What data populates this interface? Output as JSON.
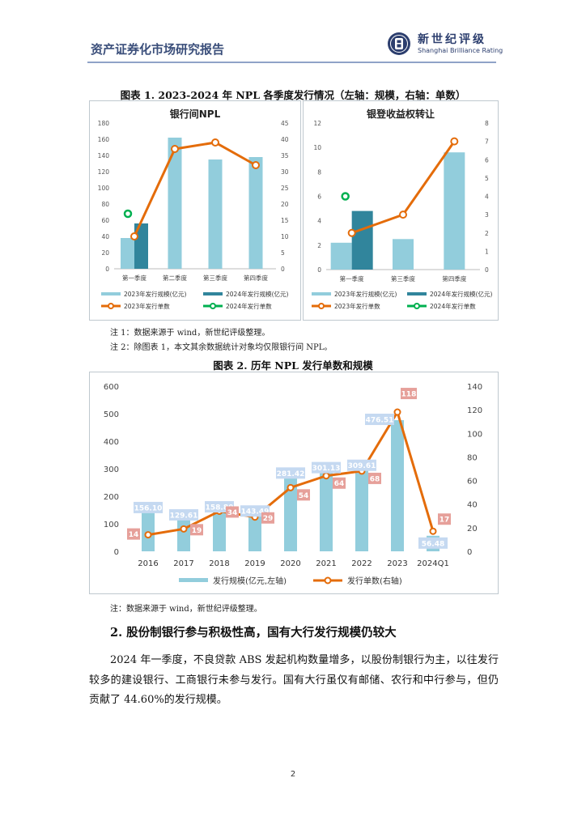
{
  "header": {
    "title": "资产证券化市场研究报告",
    "logo_cn": "新世纪评级",
    "logo_en": "Shanghai Brilliance Rating"
  },
  "colors": {
    "bar_2023": "#92cddc",
    "bar_2024": "#31859c",
    "line_2023": "#e46c0a",
    "point_2024": "#00b050",
    "label_bar": "#c5d9f1",
    "label_line": "#e6a09a"
  },
  "figure1": {
    "title": "图表 1.  2023-2024 年 NPL 各季度发行情况（左轴：规模，右轴：单数）"
  },
  "figure2": {
    "title": "图表 2.  历年 NPL 发行单数和规模"
  },
  "notes": {
    "fig1_note1": "注 1：数据来源于 wind，新世纪评级整理。",
    "fig1_note2": "注 2：除图表 1，本文其余数据统计对象均仅限银行间 NPL。",
    "fig2_note": "注：数据来源于 wind，新世纪评级整理。"
  },
  "chart_data": [
    {
      "type": "bar",
      "title": "银行间NPL",
      "categories": [
        "第一季度",
        "第二季度",
        "第三季度",
        "第四季度"
      ],
      "left_axis": {
        "ylim": [
          0,
          180
        ],
        "ticks": [
          "0",
          "20",
          "40",
          "60",
          "80",
          "100",
          "120",
          "140",
          "160",
          "180"
        ]
      },
      "right_axis": {
        "ylim": [
          0,
          45
        ],
        "ticks": [
          "0",
          "5",
          "10",
          "15",
          "20",
          "25",
          "30",
          "35",
          "40",
          "45"
        ]
      },
      "series": [
        {
          "name": "2023年发行规模(亿元)",
          "kind": "bar",
          "axis": "left",
          "values": [
            38,
            162,
            135,
            138
          ]
        },
        {
          "name": "2024年发行规模(亿元)",
          "kind": "bar",
          "axis": "left",
          "values": [
            56,
            null,
            null,
            null
          ]
        },
        {
          "name": "2023年发行单数",
          "kind": "line",
          "axis": "right",
          "values": [
            10,
            37,
            39,
            32
          ]
        },
        {
          "name": "2024年发行单数",
          "kind": "point",
          "axis": "right",
          "values": [
            17,
            null,
            null,
            null
          ]
        }
      ],
      "legend": [
        "2023年发行规模(亿元)",
        "2024年发行规模(亿元)",
        "2023年发行单数",
        "2024年发行单数"
      ]
    },
    {
      "type": "bar",
      "title": "银登收益权转让",
      "categories": [
        "第一季度",
        "第三季度",
        "第四季度"
      ],
      "left_axis": {
        "ylim": [
          0,
          12
        ],
        "ticks": [
          "0",
          "2",
          "4",
          "6",
          "8",
          "10",
          "12"
        ]
      },
      "right_axis": {
        "ylim": [
          0,
          8
        ],
        "ticks": [
          "0",
          "1",
          "2",
          "3",
          "4",
          "5",
          "6",
          "7",
          "8"
        ]
      },
      "series": [
        {
          "name": "2023年发行规模(亿元)",
          "kind": "bar",
          "axis": "left",
          "values": [
            2.2,
            2.5,
            9.6
          ]
        },
        {
          "name": "2024年发行规模(亿元)",
          "kind": "bar",
          "axis": "left",
          "values": [
            4.8,
            null,
            null
          ]
        },
        {
          "name": "2023年发行单数",
          "kind": "line",
          "axis": "right",
          "values": [
            2,
            3,
            7
          ]
        },
        {
          "name": "2024年发行单数",
          "kind": "point",
          "axis": "right",
          "values": [
            4,
            null,
            null
          ]
        }
      ],
      "legend": [
        "2023年发行规模(亿元)",
        "2024年发行规模(亿元)",
        "2023年发行单数",
        "2024年发行单数"
      ]
    },
    {
      "type": "bar",
      "title": "历年 NPL 发行单数和规模",
      "categories": [
        "2016",
        "2017",
        "2018",
        "2019",
        "2020",
        "2021",
        "2022",
        "2023",
        "2024Q1"
      ],
      "left_axis": {
        "ylim": [
          0,
          600
        ],
        "ticks": [
          "0",
          "100",
          "200",
          "300",
          "400",
          "500",
          "600"
        ]
      },
      "right_axis": {
        "ylim": [
          0,
          140
        ],
        "ticks": [
          "0",
          "20",
          "40",
          "60",
          "80",
          "100",
          "120",
          "140"
        ]
      },
      "series": [
        {
          "name": "发行规模(亿元,左轴)",
          "kind": "bar",
          "axis": "left",
          "values": [
            156.1,
            129.61,
            158.8,
            143.49,
            281.42,
            301.13,
            309.61,
            476.51,
            56.48
          ],
          "labels": [
            "156.10",
            "129.61",
            "158.80",
            "143.49",
            "281.42",
            "301.13",
            "309.61",
            "476.51",
            "56.48"
          ]
        },
        {
          "name": "发行单数(右轴)",
          "kind": "line",
          "axis": "right",
          "values": [
            14,
            19,
            34,
            29,
            54,
            64,
            68,
            118,
            17
          ],
          "labels": [
            "14",
            "19",
            "34",
            "29",
            "54",
            "64",
            "68",
            "118",
            "17"
          ]
        }
      ],
      "legend": [
        "发行规模(亿元,左轴)",
        "发行单数(右轴)"
      ]
    }
  ],
  "section": {
    "heading": "2. 股份制银行参与积极性高，国有大行发行规模仍较大",
    "paragraph": "2024 年一季度，不良贷款 ABS 发起机构数量增多，以股份制银行为主，以往发行较多的建设银行、工商银行未参与发行。国有大行虽仅有邮储、农行和中行参与，但仍贡献了 44.60%的发行规模。"
  },
  "footer": {
    "page_number": "2"
  }
}
